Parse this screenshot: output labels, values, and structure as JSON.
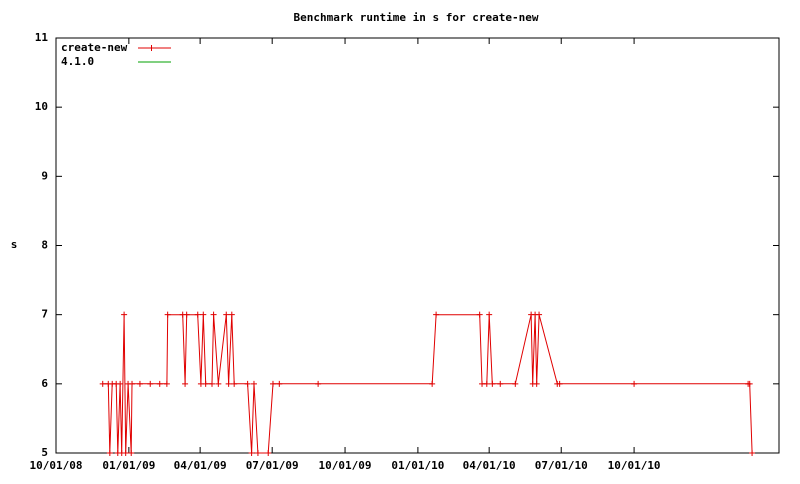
{
  "chart_data": {
    "type": "line",
    "title": "Benchmark runtime in s for create-new",
    "y_label": "s",
    "xlim": [
      "2008-10-01",
      "2011-04-02"
    ],
    "xticks": [
      {
        "value": "2008-10-01",
        "label": "10/01/08"
      },
      {
        "value": "2009-01-01",
        "label": "01/01/09"
      },
      {
        "value": "2009-04-01",
        "label": "04/01/09"
      },
      {
        "value": "2009-07-01",
        "label": "07/01/09"
      },
      {
        "value": "2009-10-01",
        "label": "10/01/09"
      },
      {
        "value": "2010-01-01",
        "label": "01/01/10"
      },
      {
        "value": "2010-04-01",
        "label": "04/01/10"
      },
      {
        "value": "2010-07-01",
        "label": "07/01/10"
      },
      {
        "value": "2010-10-01",
        "label": "10/01/10"
      }
    ],
    "ylim": [
      5,
      11
    ],
    "yticks": [
      5,
      6,
      7,
      8,
      9,
      10,
      11
    ],
    "legend": "top-left",
    "series": [
      {
        "name": "create-new",
        "color": "#e00000",
        "x": [
          "2008-11-29",
          "2008-12-06",
          "2008-12-08",
          "2008-12-11",
          "2008-12-16",
          "2008-12-18",
          "2008-12-21",
          "2008-12-23",
          "2008-12-26",
          "2008-12-28",
          "2008-12-31",
          "2009-01-04",
          "2009-01-05",
          "2009-01-15",
          "2009-01-28",
          "2009-02-09",
          "2009-02-18",
          "2009-02-19",
          "2009-03-10",
          "2009-03-13",
          "2009-03-15",
          "2009-03-29",
          "2009-04-02",
          "2009-04-05",
          "2009-04-08",
          "2009-04-16",
          "2009-04-18",
          "2009-04-24",
          "2009-05-04",
          "2009-05-07",
          "2009-05-11",
          "2009-05-14",
          "2009-05-31",
          "2009-06-05",
          "2009-06-08",
          "2009-06-13",
          "2009-06-26",
          "2009-07-02",
          "2009-07-10",
          "2009-08-28",
          "2010-01-19",
          "2010-01-24",
          "2010-03-20",
          "2010-03-23",
          "2010-03-29",
          "2010-04-01",
          "2010-04-05",
          "2010-04-15",
          "2010-05-04",
          "2010-05-24",
          "2010-05-26",
          "2010-05-29",
          "2010-05-31",
          "2010-06-03",
          "2010-06-26",
          "2010-06-29",
          "2010-10-01",
          "2011-02-22",
          "2011-02-24",
          "2011-02-27"
        ],
        "values": [
          6,
          6,
          5,
          6,
          6,
          5,
          6,
          5,
          7,
          5,
          6,
          5,
          6,
          6,
          6,
          6,
          6,
          7,
          7,
          6,
          7,
          7,
          6,
          7,
          6,
          6,
          7,
          6,
          7,
          6,
          7,
          6,
          6,
          5,
          6,
          5,
          5,
          6,
          6,
          6,
          6,
          7,
          7,
          6,
          6,
          7,
          6,
          6,
          6,
          7,
          6,
          7,
          6,
          7,
          6,
          6,
          6,
          6,
          6,
          5
        ]
      },
      {
        "name": "4.1.0",
        "color": "#00a000",
        "x": [],
        "values": []
      }
    ]
  }
}
